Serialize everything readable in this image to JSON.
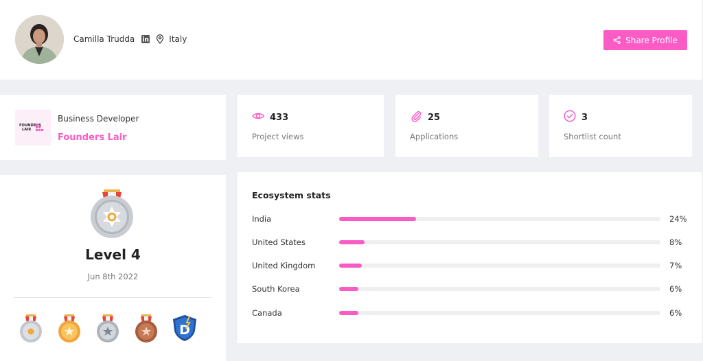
{
  "profile": {
    "name": "Camilla Trudda",
    "location": "Italy",
    "share_label": "Share Profile"
  },
  "company": {
    "role": "Business Developer",
    "name": "Founders Lair",
    "logo_text": "FOUNDERS LAIR"
  },
  "stats": [
    {
      "icon": "eye-icon",
      "value": "433",
      "label": "Project views"
    },
    {
      "icon": "paperclip-icon",
      "value": "25",
      "label": "Applications"
    },
    {
      "icon": "check-circle-icon",
      "value": "3",
      "label": "Shortlist count"
    }
  ],
  "level": {
    "title": "Level 4",
    "date": "Jun 8th 2022",
    "badges": [
      "silver-medal-icon",
      "gold-medal-icon",
      "silver-star-medal-icon",
      "bronze-medal-icon",
      "d-shield-icon"
    ]
  },
  "ecosystem": {
    "title": "Ecosystem stats",
    "rows": [
      {
        "country": "India",
        "percent": 24,
        "label": "24%"
      },
      {
        "country": "United States",
        "percent": 8,
        "label": "8%"
      },
      {
        "country": "United Kingdom",
        "percent": 7,
        "label": "7%"
      },
      {
        "country": "South Korea",
        "percent": 6,
        "label": "6%"
      },
      {
        "country": "Canada",
        "percent": 6,
        "label": "6%"
      }
    ]
  },
  "colors": {
    "accent": "#fb5bc5",
    "background": "#eef0f3"
  }
}
